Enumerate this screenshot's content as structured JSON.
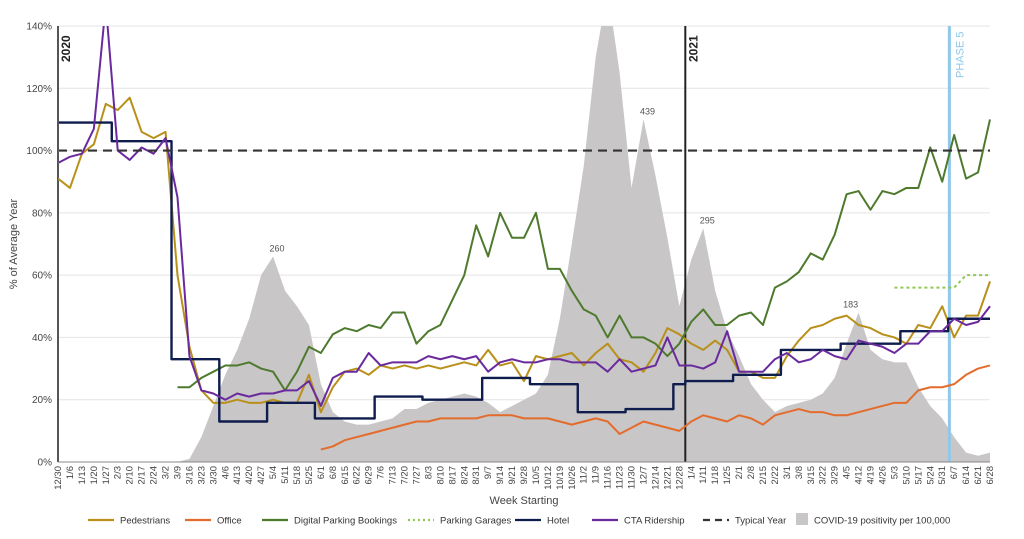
{
  "chart_data": {
    "type": "line",
    "title": "",
    "xlabel": "Week Starting",
    "ylabel": "% of Average Year",
    "ylim": [
      0,
      140
    ],
    "yticks": [
      "0%",
      "20%",
      "40%",
      "60%",
      "80%",
      "100%",
      "120%",
      "140%"
    ],
    "grid": true,
    "legend_position": "bottom",
    "x_labels": [
      "12/30",
      "1/6",
      "1/13",
      "1/20",
      "1/27",
      "2/3",
      "2/10",
      "2/17",
      "2/24",
      "3/2",
      "3/9",
      "3/16",
      "3/23",
      "3/30",
      "4/6",
      "4/13",
      "4/20",
      "4/27",
      "5/4",
      "5/11",
      "5/18",
      "5/25",
      "6/1",
      "6/8",
      "6/15",
      "6/22",
      "6/29",
      "7/6",
      "7/13",
      "7/20",
      "7/27",
      "8/3",
      "8/10",
      "8/17",
      "8/24",
      "8/31",
      "9/7",
      "9/14",
      "9/21",
      "9/28",
      "10/5",
      "10/12",
      "10/19",
      "10/26",
      "11/2",
      "11/9",
      "11/16",
      "11/23",
      "11/30",
      "12/7",
      "12/14",
      "12/21",
      "12/28",
      "1/4",
      "1/11",
      "1/18",
      "1/25",
      "2/1",
      "2/8",
      "2/15",
      "2/22",
      "3/1",
      "3/8",
      "3/15",
      "3/22",
      "3/29",
      "4/5",
      "4/12",
      "4/19",
      "4/26",
      "5/3",
      "5/10",
      "5/17",
      "5/24",
      "5/31",
      "6/7",
      "6/14",
      "6/21",
      "6/28"
    ],
    "tick_labels": [
      "12/30",
      "1/6",
      "1/13",
      "1/20",
      "1/27",
      "2/3",
      "2/10",
      "2/17",
      "2/24",
      "3/2",
      "3/9",
      "3/16",
      "3/23",
      "3/30",
      "4/6",
      "4/13",
      "4/20",
      "4/27",
      "5/4",
      "5/11",
      "5/18",
      "5/25",
      "6/1",
      "6/8",
      "6/15",
      "6/22",
      "6/29",
      "7/6",
      "7/13",
      "7/20",
      "7/27",
      "8/3",
      "8/10",
      "8/17",
      "8/24",
      "8/31",
      "9/7",
      "9/14",
      "9/21",
      "9/28",
      "10/5",
      "10/12",
      "10/19",
      "10/26",
      "11/2",
      "11/9",
      "11/16",
      "11/23",
      "11/30",
      "12/7",
      "12/14",
      "12/21",
      "12/28",
      "1/4",
      "1/11",
      "1/18",
      "1/25",
      "2/1",
      "2/8",
      "2/15",
      "2/22",
      "3/1",
      "3/8",
      "3/15",
      "3/22",
      "3/29",
      "4/5",
      "4/12",
      "4/19",
      "4/26",
      "5/3",
      "5/10",
      "5/17",
      "5/24",
      "5/31",
      "6/7",
      "6/14",
      "6/21",
      "6/28"
    ],
    "area": {
      "name": "COVID-19 positivity per 100,000",
      "color": "#c8c6c6",
      "values": [
        0,
        0,
        0,
        0,
        0,
        0,
        0,
        0,
        0,
        0,
        0,
        1,
        8,
        18,
        28,
        36,
        46,
        60,
        66,
        55,
        50,
        44,
        25,
        16,
        13,
        12,
        12,
        13,
        14,
        17,
        17,
        19,
        20,
        21,
        22,
        21,
        19,
        16,
        18,
        20,
        22,
        28,
        46,
        70,
        95,
        130,
        152,
        125,
        88,
        110,
        92,
        72,
        50,
        65,
        75,
        55,
        42,
        34,
        25,
        20,
        16,
        18,
        19,
        20,
        22,
        27,
        38,
        48,
        36,
        33,
        32,
        32,
        24,
        18,
        14,
        8,
        3,
        2,
        3
      ],
      "peak_labels": [
        {
          "index": 18,
          "value": 66,
          "label": "260"
        },
        {
          "index": 49,
          "value": 110,
          "label": "439"
        },
        {
          "index": 54,
          "value": 75,
          "label": "295"
        },
        {
          "index": 66,
          "value": 48,
          "label": "183"
        }
      ]
    },
    "series": [
      {
        "name": "Pedestrians",
        "color": "#b8901a",
        "dash": "",
        "values": [
          91,
          88,
          99,
          102,
          115,
          113,
          117,
          106,
          104,
          106,
          60,
          37,
          23,
          19,
          19,
          20,
          19,
          19,
          20,
          19,
          19,
          28,
          16,
          24,
          29,
          30,
          28,
          31,
          30,
          31,
          30,
          31,
          30,
          31,
          32,
          31,
          36,
          31,
          32,
          26,
          34,
          33,
          34,
          35,
          31,
          35,
          38,
          33,
          32,
          29,
          35,
          43,
          41,
          38,
          36,
          39,
          36,
          29,
          29,
          27,
          27,
          34,
          39,
          43,
          44,
          46,
          47,
          44,
          43,
          41,
          40,
          38,
          44,
          43,
          50,
          40,
          47,
          47,
          58
        ]
      },
      {
        "name": "Office",
        "color": "#e36c2c",
        "dash": "",
        "values": [
          null,
          null,
          null,
          null,
          null,
          null,
          null,
          null,
          null,
          null,
          null,
          null,
          null,
          null,
          null,
          null,
          null,
          null,
          null,
          null,
          null,
          null,
          4,
          5,
          7,
          8,
          9,
          10,
          11,
          12,
          13,
          13,
          14,
          14,
          14,
          14,
          15,
          15,
          15,
          14,
          14,
          14,
          13,
          12,
          13,
          14,
          13,
          9,
          11,
          13,
          12,
          11,
          10,
          13,
          15,
          14,
          13,
          15,
          14,
          12,
          15,
          16,
          17,
          16,
          16,
          15,
          15,
          16,
          17,
          18,
          19,
          19,
          23,
          24,
          24,
          25,
          28,
          30,
          31
        ]
      },
      {
        "name": "Digital Parking Bookings",
        "color": "#4e7a2e",
        "dash": "",
        "values": [
          null,
          null,
          null,
          null,
          null,
          null,
          null,
          null,
          null,
          null,
          24,
          24,
          27,
          29,
          31,
          31,
          32,
          30,
          29,
          23,
          29,
          37,
          35,
          41,
          43,
          42,
          44,
          43,
          48,
          48,
          38,
          42,
          44,
          52,
          60,
          76,
          66,
          80,
          72,
          72,
          80,
          62,
          62,
          55,
          49,
          47,
          40,
          47,
          40,
          40,
          38,
          34,
          38,
          45,
          49,
          44,
          44,
          47,
          48,
          44,
          56,
          58,
          61,
          67,
          65,
          73,
          86,
          87,
          81,
          87,
          86,
          88,
          88,
          101,
          90,
          105,
          91,
          93,
          110
        ]
      },
      {
        "name": "Parking Garages",
        "color": "#92c852",
        "dash": "3,3",
        "values": [
          null,
          null,
          null,
          null,
          null,
          null,
          null,
          null,
          null,
          null,
          null,
          null,
          null,
          null,
          null,
          null,
          null,
          null,
          null,
          null,
          null,
          null,
          null,
          null,
          null,
          null,
          null,
          null,
          null,
          null,
          null,
          null,
          null,
          null,
          null,
          null,
          null,
          null,
          null,
          null,
          null,
          null,
          null,
          null,
          null,
          null,
          null,
          null,
          null,
          null,
          null,
          null,
          null,
          null,
          null,
          null,
          null,
          null,
          null,
          null,
          null,
          null,
          null,
          null,
          null,
          null,
          null,
          null,
          null,
          null,
          56,
          56,
          56,
          56,
          56,
          56,
          60,
          60,
          60
        ]
      },
      {
        "name": "Hotel",
        "color": "#0e1c4e",
        "dash": "",
        "step": true,
        "values": [
          109,
          109,
          109,
          109,
          109,
          103,
          103,
          103,
          103,
          103,
          33,
          33,
          33,
          33,
          13,
          13,
          13,
          13,
          19,
          19,
          19,
          19,
          14,
          14,
          14,
          14,
          14,
          21,
          21,
          21,
          21,
          20,
          20,
          20,
          20,
          20,
          27,
          27,
          27,
          27,
          25,
          25,
          25,
          25,
          16,
          16,
          16,
          16,
          17,
          17,
          17,
          17,
          25,
          26,
          26,
          26,
          26,
          28,
          28,
          28,
          28,
          36,
          36,
          36,
          36,
          36,
          38,
          38,
          38,
          38,
          38,
          42,
          42,
          42,
          42,
          46,
          46,
          46,
          46
        ]
      },
      {
        "name": "CTA Ridership",
        "color": "#6a2a9e",
        "dash": "",
        "values": [
          96,
          98,
          99,
          107,
          147,
          100,
          97,
          101,
          99,
          104,
          85,
          34,
          23,
          22,
          20,
          22,
          21,
          22,
          22,
          23,
          23,
          26,
          18,
          27,
          29,
          29,
          35,
          31,
          32,
          32,
          32,
          34,
          33,
          34,
          33,
          34,
          29,
          32,
          33,
          32,
          32,
          33,
          33,
          32,
          32,
          32,
          29,
          33,
          29,
          30,
          31,
          40,
          31,
          31,
          30,
          32,
          42,
          29,
          29,
          29,
          33,
          35,
          32,
          33,
          36,
          34,
          33,
          39,
          38,
          37,
          35,
          38,
          38,
          42,
          42,
          46,
          44,
          45,
          50
        ]
      },
      {
        "name": "Typical Year",
        "color": "#333333",
        "dash": "9,6",
        "constant": 100,
        "values": [
          100,
          100
        ]
      }
    ],
    "annotations": [
      {
        "label": "2020",
        "index": 0,
        "color": "#222222"
      },
      {
        "label": "2021",
        "index": 52.5,
        "color": "#222222"
      },
      {
        "label": "PHASE 5",
        "index": 74.6,
        "color": "#8fc8ea"
      }
    ]
  },
  "legend": {
    "items": [
      {
        "name": "Pedestrians",
        "color": "#b8901a",
        "kind": "line"
      },
      {
        "name": "Office",
        "color": "#e36c2c",
        "kind": "line"
      },
      {
        "name": "Digital Parking Bookings",
        "color": "#4e7a2e",
        "kind": "line"
      },
      {
        "name": "Parking Garages",
        "color": "#92c852",
        "kind": "dotted"
      },
      {
        "name": "Hotel",
        "color": "#0e1c4e",
        "kind": "line"
      },
      {
        "name": "CTA Ridership",
        "color": "#6a2a9e",
        "kind": "line"
      },
      {
        "name": "Typical Year",
        "color": "#333333",
        "kind": "dashed"
      },
      {
        "name": "COVID-19 positivity per 100,000",
        "color": "#c8c6c6",
        "kind": "box"
      }
    ]
  }
}
